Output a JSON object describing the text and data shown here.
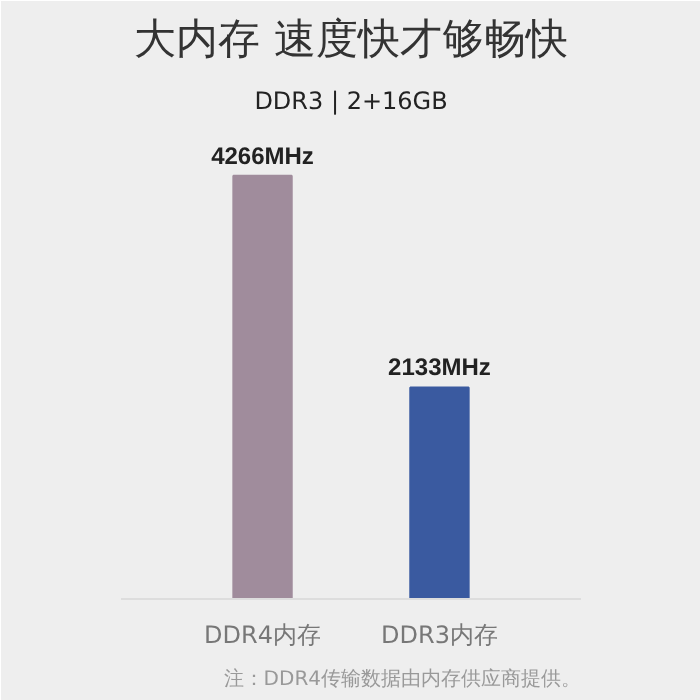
{
  "chart_data": {
    "type": "bar",
    "title": "大内存 速度快才够畅快",
    "subtitle": "DDR3 | 2+16GB",
    "categories": [
      "DDR4内存",
      "DDR3内存"
    ],
    "values": [
      4266,
      2133
    ],
    "colors": [
      "#a08c9c",
      "#3a5aa0"
    ],
    "value_labels": [
      "4266MHz",
      "2133MHz"
    ],
    "annotations": [
      "注：DDR4传输数据由内存供应商提供。"
    ],
    "grid": false
  }
}
